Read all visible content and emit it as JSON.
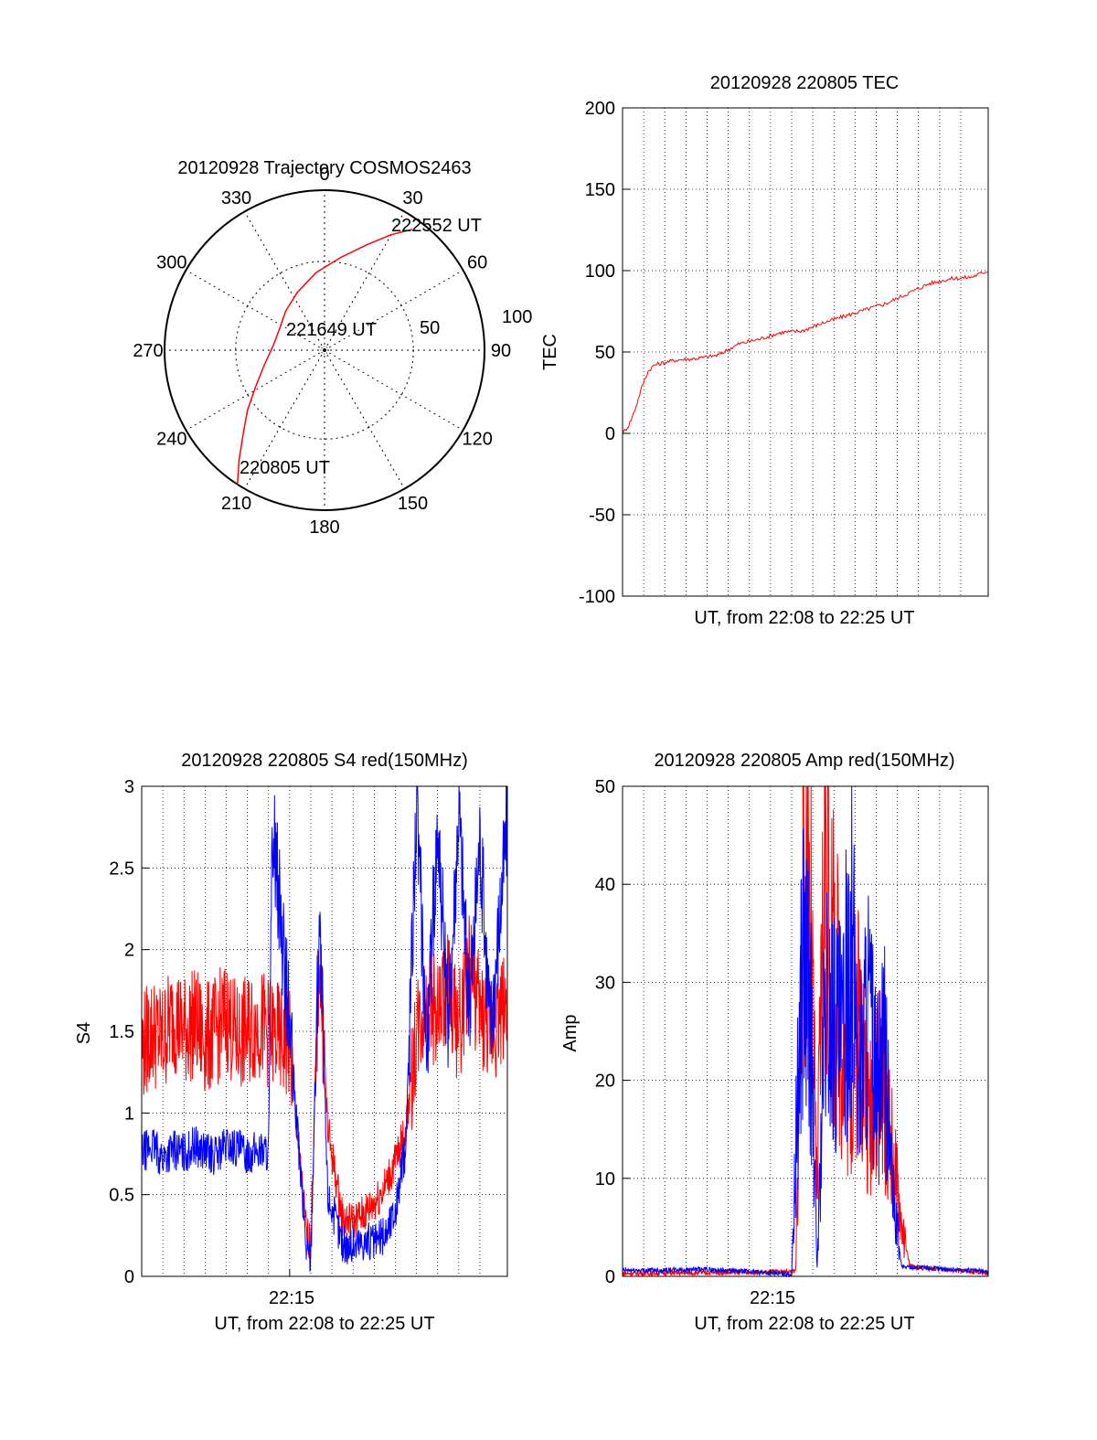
{
  "colors": {
    "red": "#ff0000",
    "blue": "#0000ff",
    "axis": "#000000",
    "grid": "#000000",
    "background": "#ffffff"
  },
  "chart_data": [
    {
      "id": "polar",
      "type": "scatter",
      "title": "20120928 Trajectory COSMOS2463",
      "azimuth_labels": [
        "0",
        "30",
        "60",
        "90",
        "120",
        "150",
        "180",
        "210",
        "240",
        "270",
        "300",
        "330"
      ],
      "radius_labels": [
        "50",
        "100"
      ],
      "time_labels": {
        "start": "220805 UT",
        "mid": "221649 UT",
        "end": "222552 UT"
      },
      "trajectory": [
        {
          "az": 213,
          "zenith": 90
        },
        {
          "az": 218,
          "zenith": 78
        },
        {
          "az": 224,
          "zenith": 66
        },
        {
          "az": 232,
          "zenith": 55
        },
        {
          "az": 242,
          "zenith": 44
        },
        {
          "az": 256,
          "zenith": 35
        },
        {
          "az": 275,
          "zenith": 29
        },
        {
          "az": 295,
          "zenith": 28
        },
        {
          "az": 315,
          "zenith": 31
        },
        {
          "az": 335,
          "zenith": 36
        },
        {
          "az": 354,
          "zenith": 44
        },
        {
          "az": 10,
          "zenith": 53
        },
        {
          "az": 22,
          "zenith": 64
        },
        {
          "az": 30,
          "zenith": 75
        },
        {
          "az": 36,
          "zenith": 84
        }
      ]
    },
    {
      "id": "tec",
      "type": "line",
      "title": "20120928 220805 TEC",
      "xlabel": "UT, from 22:08 to 22:25 UT",
      "ylabel": "TEC",
      "ylim": [
        -100,
        200
      ],
      "yticks": [
        "-100",
        "-50",
        "0",
        "50",
        "100",
        "150",
        "200"
      ],
      "grid": true,
      "series": [
        {
          "color": "#ff0000",
          "x": [
            0,
            0.3,
            0.6,
            0.9,
            1.2,
            1.5,
            1.8,
            2.5,
            3.5,
            4.5,
            5.5,
            6.5,
            7.5,
            8.5,
            9.5,
            10.5,
            11.5,
            12.5,
            13.5,
            14.5,
            15.5,
            16.5,
            17.3
          ],
          "y": [
            0,
            5,
            15,
            28,
            38,
            42,
            43,
            45,
            46,
            48,
            55,
            58,
            62,
            63,
            68,
            72,
            76,
            80,
            86,
            92,
            95,
            96,
            100
          ]
        }
      ]
    },
    {
      "id": "s4",
      "type": "line",
      "title": "20120928 220805 S4 red(150MHz)",
      "xlabel": "UT, from 22:08 to 22:25 UT",
      "ylabel": "S4",
      "ylim": [
        0,
        3
      ],
      "yticks": [
        "0",
        "0.5",
        "1",
        "1.5",
        "2",
        "2.5",
        "3"
      ],
      "xtick_label": "22:15",
      "grid": true,
      "series": [
        {
          "color": "#ff0000",
          "x": [
            0,
            0.5,
            1,
            1.5,
            2,
            2.5,
            3,
            3.5,
            4,
            4.5,
            5,
            5.5,
            6,
            7,
            7.8,
            8,
            8.4,
            8.8,
            9.5,
            10,
            10.5,
            11,
            11.5,
            12,
            12.5,
            13,
            13.5,
            14,
            14.5,
            15,
            15.5,
            16,
            16.5,
            17.3
          ],
          "y": [
            1.4,
            1.5,
            1.45,
            1.6,
            1.5,
            1.55,
            1.45,
            1.5,
            1.6,
            1.45,
            1.5,
            1.55,
            1.5,
            1.4,
            0.25,
            0.22,
            2.0,
            0.9,
            0.35,
            0.33,
            0.38,
            0.45,
            0.55,
            0.7,
            0.9,
            1.5,
            1.7,
            1.6,
            1.8,
            1.5,
            1.9,
            1.6,
            1.5,
            1.7
          ]
        },
        {
          "color": "#0000ff",
          "x": [
            0,
            0.5,
            1,
            1.5,
            2,
            2.5,
            3,
            3.5,
            4,
            4.5,
            5,
            5.5,
            6,
            6.2,
            7,
            7.8,
            8,
            8.4,
            8.8,
            9.5,
            10,
            10.5,
            11,
            11.5,
            12,
            12.5,
            13,
            13.5,
            14,
            14.5,
            15,
            15.5,
            16,
            16.5,
            17.3
          ],
          "y": [
            0.75,
            0.8,
            0.72,
            0.78,
            0.75,
            0.8,
            0.76,
            0.74,
            0.8,
            0.78,
            0.75,
            0.77,
            0.76,
            2.8,
            1.5,
            0.15,
            0.12,
            2.2,
            0.5,
            0.2,
            0.18,
            0.22,
            0.2,
            0.25,
            0.4,
            0.8,
            2.9,
            1.4,
            2.8,
            1.5,
            2.9,
            1.6,
            2.7,
            1.5,
            2.8
          ]
        }
      ]
    },
    {
      "id": "amp",
      "type": "line",
      "title": "20120928 220805 Amp red(150MHz)",
      "xlabel": "UT, from 22:08 to 22:25 UT",
      "ylabel": "Amp",
      "ylim": [
        0,
        50
      ],
      "yticks": [
        "0",
        "10",
        "20",
        "30",
        "40",
        "50"
      ],
      "xtick_label": "22:15",
      "grid": true,
      "series": [
        {
          "color": "#ff0000",
          "x": [
            0,
            6,
            8.2,
            8.5,
            8.8,
            9.2,
            9.6,
            10,
            10.4,
            10.8,
            11.2,
            11.6,
            12,
            12.4,
            12.8,
            13.2,
            13.6,
            17.3
          ],
          "y": [
            0.3,
            0.4,
            0.5,
            38,
            44,
            8,
            47,
            30,
            25,
            20,
            28,
            15,
            22,
            18,
            12,
            5,
            1,
            0.3
          ]
        },
        {
          "color": "#0000ff",
          "x": [
            0,
            4,
            5.8,
            8,
            8.5,
            8.9,
            9.2,
            9.6,
            10,
            10.4,
            10.8,
            11.2,
            11.6,
            12,
            12.4,
            12.8,
            13.2,
            17.3
          ],
          "y": [
            0.6,
            0.7,
            0.5,
            0.2,
            32,
            26,
            0.5,
            28,
            25,
            23,
            35,
            20,
            28,
            18,
            22,
            8,
            1,
            0.5
          ]
        }
      ]
    }
  ]
}
